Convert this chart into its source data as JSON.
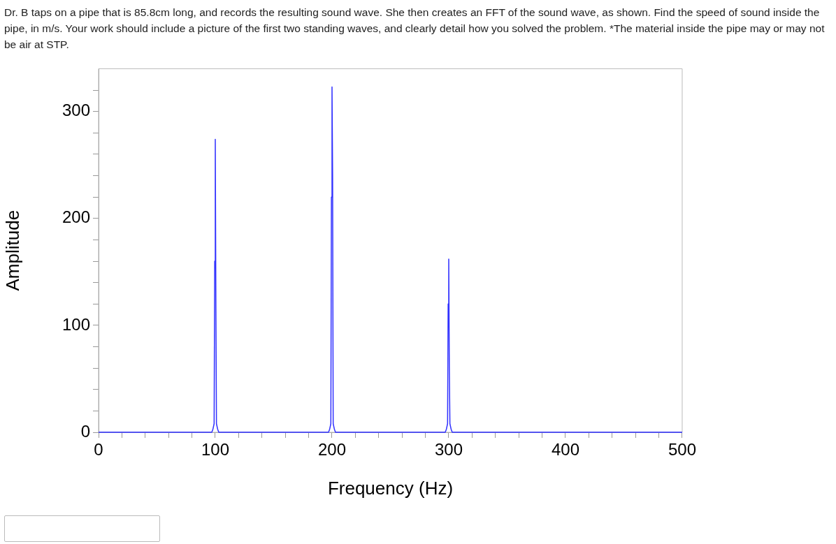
{
  "chart_data": {
    "type": "line",
    "title": "Dr. B taps on a pipe that is 85.8cm long, and records the resulting sound wave. She then creates an FFT of the sound wave, as shown. Find the speed of sound inside the pipe, in m/s. Your work should include a picture of the first two standing waves, and clearly detail how you solved the problem. *The material inside the pipe may or may not be air at STP.",
    "xlabel": "Frequency (Hz)",
    "ylabel": "Amplitude",
    "xlim": [
      0,
      500
    ],
    "ylim": [
      0,
      340
    ],
    "xticks": [
      0,
      {
        "value": 20,
        "label": null
      },
      {
        "value": 40,
        "label": null
      },
      {
        "value": 60,
        "label": null
      },
      {
        "value": 80,
        "label": null
      },
      100,
      {
        "value": 120,
        "label": null
      },
      {
        "value": 140,
        "label": null
      },
      {
        "value": 160,
        "label": null
      },
      {
        "value": 180,
        "label": null
      },
      200,
      {
        "value": 220,
        "label": null
      },
      {
        "value": 240,
        "label": null
      },
      {
        "value": 260,
        "label": null
      },
      {
        "value": 280,
        "label": null
      },
      300,
      {
        "value": 320,
        "label": null
      },
      {
        "value": 340,
        "label": null
      },
      {
        "value": 360,
        "label": null
      },
      {
        "value": 380,
        "label": null
      },
      400,
      {
        "value": 420,
        "label": null
      },
      {
        "value": 440,
        "label": null
      },
      {
        "value": 460,
        "label": null
      },
      {
        "value": 480,
        "label": null
      },
      500
    ],
    "yticks": [
      0,
      {
        "value": 20,
        "label": null
      },
      {
        "value": 40,
        "label": null
      },
      {
        "value": 60,
        "label": null
      },
      {
        "value": 80,
        "label": null
      },
      100,
      {
        "value": 120,
        "label": null
      },
      {
        "value": 140,
        "label": null
      },
      {
        "value": 160,
        "label": null
      },
      {
        "value": 180,
        "label": null
      },
      200,
      {
        "value": 220,
        "label": null
      },
      {
        "value": 240,
        "label": null
      },
      {
        "value": 260,
        "label": null
      },
      {
        "value": 280,
        "label": null
      },
      300,
      {
        "value": 320,
        "label": null
      }
    ],
    "grid": false,
    "legend": false,
    "marker": "none",
    "line_style": "solid",
    "series": [
      {
        "color": "#3030ff",
        "x": [
          0,
          1,
          97,
          98,
          99,
          99.5,
          100,
          100.5,
          101,
          102,
          103,
          197,
          198,
          199,
          199.5,
          200,
          200.5,
          201,
          202,
          203,
          297,
          298,
          299,
          299.5,
          300,
          300.5,
          301,
          302,
          303,
          500
        ],
        "values": [
          0,
          0,
          0,
          3,
          8,
          160,
          274,
          120,
          8,
          3,
          0,
          0,
          3,
          8,
          220,
          323,
          240,
          8,
          3,
          0,
          0,
          3,
          8,
          120,
          162,
          60,
          8,
          3,
          0,
          0
        ]
      }
    ]
  }
}
